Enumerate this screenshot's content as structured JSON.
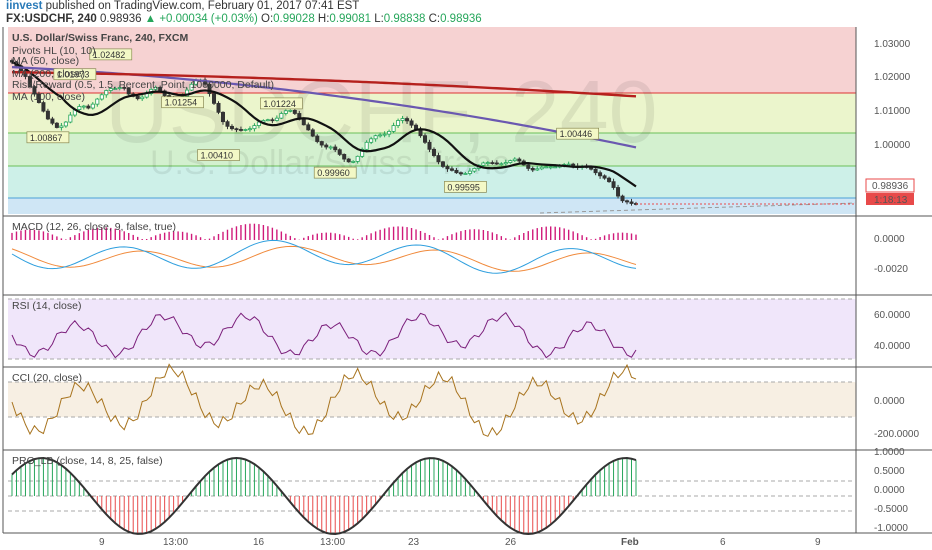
{
  "header": {
    "publisher": "iinvest",
    "published_text": "published on TradingView.com, February 01, 2017 07:41 EST",
    "symbol": "FX:USDCHF, 240",
    "last": "0.98936",
    "change": "+0.00034 (+0.03%)",
    "o_label": "O:",
    "o": "0.99028",
    "h_label": "H:",
    "h": "0.99081",
    "l_label": "L:",
    "l": "0.98838",
    "c_label": "C:",
    "c": "0.98936"
  },
  "main_pane": {
    "title": "U.S. Dollar/Swiss Franc, 240, FXCM",
    "watermark_symbol": "USDCHF, 240",
    "watermark_name": "U.S. Dollar/Swiss Franc",
    "legend": [
      "Pivots HL (10, 10)",
      "MA (200, close)",
      "MA (50, close)",
      "Risk/Reward (0.5, 1.5, Percent, Point, 1000000, Default)",
      "MA (100, close)"
    ],
    "price_label": "0.98936",
    "countdown_label": "1:18:13",
    "y_ticks": [
      "1.03000",
      "1.02000",
      "1.01000",
      "1.00000"
    ]
  },
  "macd_pane": {
    "title": "MACD (12, 26, close, 9, false, true)",
    "y_ticks": [
      "0.0000",
      "-0.0020"
    ]
  },
  "rsi_pane": {
    "title": "RSI (14, close)",
    "y_ticks": [
      "60.0000",
      "40.0000"
    ]
  },
  "cci_pane": {
    "title": "CCI (20, close)",
    "y_ticks": [
      "0.0000",
      "-200.0000"
    ]
  },
  "pro_pane": {
    "title": "PRO_LB (close, 14, 8, 25, false)",
    "y_ticks": [
      "1.0000",
      "0.5000",
      "0.0000",
      "-0.5000",
      "-1.0000"
    ]
  },
  "x_axis": {
    "labels": [
      "9",
      "13:00",
      "16",
      "13:00",
      "23",
      "26",
      "Feb",
      "6",
      "9"
    ]
  },
  "colors": {
    "bull": "#26a65b",
    "bear": "#333333",
    "ma50": "#111111",
    "ma100": "#6a58b0",
    "ma200": "#b5201d",
    "macd": "#2f9fde",
    "signal": "#f08a3c",
    "hist": "#d01a7a",
    "rsi": "#7b1f7b",
    "cci": "#a8741f",
    "pro": "#333333",
    "price_tag": "#e84a4a"
  },
  "chart_data": [
    {
      "type": "candlestick",
      "title": "U.S. Dollar/Swiss Franc, 240, FXCM",
      "x_labels": [
        "9",
        "13:00",
        "16",
        "13:00",
        "23",
        "26",
        "Feb",
        "6",
        "9"
      ],
      "ylim": [
        0.9868,
        1.0348
      ],
      "close": [
        1.0258,
        1.0248,
        1.0236,
        1.0221,
        1.0195,
        1.0176,
        1.0154,
        1.0132,
        1.0112,
        1.0101,
        1.009,
        1.0094,
        1.0104,
        1.0122,
        1.0136,
        1.0144,
        1.0145,
        1.014,
        1.015,
        1.0163,
        1.0174,
        1.0185,
        1.019,
        1.019,
        1.0193,
        1.0191,
        1.0176,
        1.017,
        1.0164,
        1.0168,
        1.0177,
        1.0188,
        1.0193,
        1.0184,
        1.0172,
        1.0167,
        1.0162,
        1.0162,
        1.017,
        1.0186,
        1.0201,
        1.0212,
        1.0212,
        1.0201,
        1.0177,
        1.0152,
        1.0129,
        1.0105,
        1.0093,
        1.0087,
        1.0085,
        1.0083,
        1.0085,
        1.0087,
        1.0095,
        1.0104,
        1.0108,
        1.011,
        1.0108,
        1.0114,
        1.0126,
        1.0133,
        1.0134,
        1.0126,
        1.0111,
        1.0097,
        1.0084,
        1.0068,
        1.0054,
        1.0045,
        1.004,
        1.004,
        1.0033,
        1.0021,
        1.0009,
        1.0002,
        1.0003,
        1.0016,
        1.0034,
        1.0052,
        1.0061,
        1.0069,
        1.0071,
        1.0073,
        1.008,
        1.0095,
        1.0108,
        1.0113,
        1.0107,
        1.0096,
        1.0084,
        1.0069,
        1.0052,
        1.0034,
        1.0018,
        1.0002,
        0.999,
        0.9984,
        0.998,
        0.9974,
        0.9971,
        0.9972,
        0.9978,
        0.9985,
        0.9993,
        0.9999,
        1.0,
        0.9999,
        0.9997,
        0.9997,
        1.0,
        1.0005,
        1.0009,
        1.0004,
        0.9994,
        0.9985,
        0.9981,
        0.9984,
        0.9988,
        0.9989,
        0.9989,
        0.9989,
        0.9991,
        0.9995,
        0.9996,
        0.9991,
        0.9989,
        0.999,
        0.9989,
        0.9983,
        0.9974,
        0.9966,
        0.996,
        0.9951,
        0.9936,
        0.9914,
        0.9902,
        0.9899,
        0.9895,
        0.9894
      ],
      "pivot_highs": [
        "1.02482",
        "1.01973",
        "1.01254",
        "1.01224",
        "1.00446"
      ],
      "pivot_lows": [
        "1.00867",
        "1.00410",
        "0.99960",
        "0.99595"
      ],
      "last": 0.98936
    },
    {
      "type": "line",
      "title": "MACD (12, 26, close, 9, false, true)",
      "series": [
        {
          "name": "MACD"
        },
        {
          "name": "Signal"
        },
        {
          "name": "Histogram"
        }
      ]
    },
    {
      "type": "line",
      "title": "RSI (14, close)"
    },
    {
      "type": "line",
      "title": "CCI (20, close)"
    },
    {
      "type": "area",
      "title": "PRO_LB (close, 14, 8, 25, false)"
    }
  ]
}
